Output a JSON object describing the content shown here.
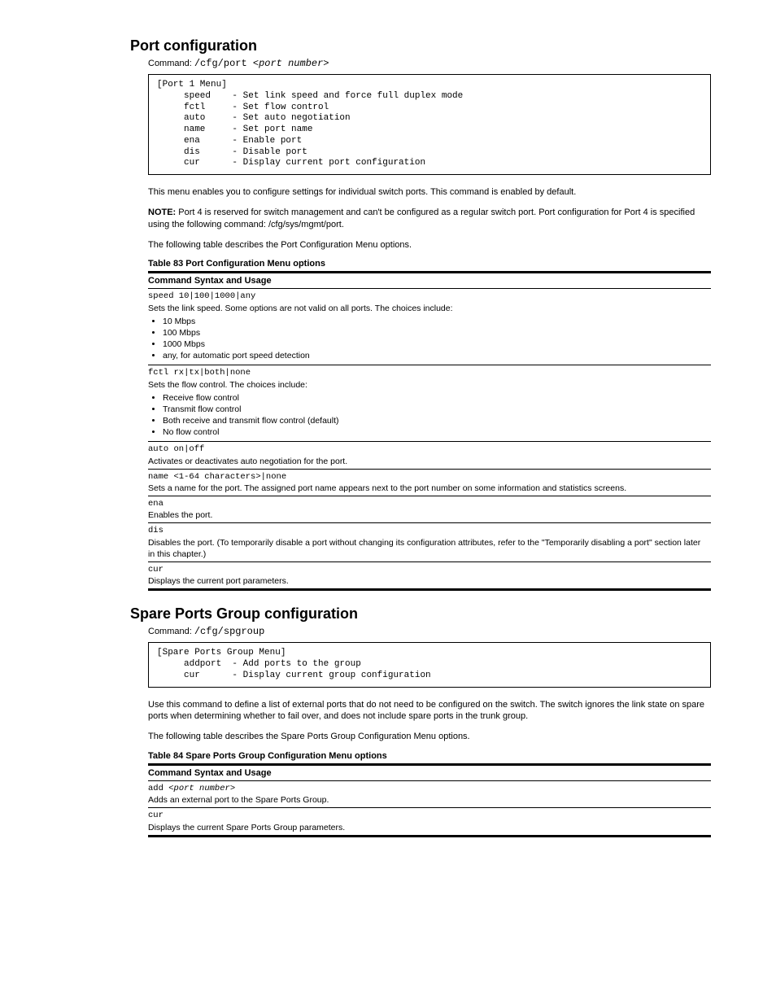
{
  "port_menu": {
    "heading": "Port configuration",
    "command_prefix": "/cfg/port <",
    "command_param": "port number",
    "command_suffix": ">",
    "codebox": "[Port 1 Menu]\n     speed    - Set link speed and force full duplex mode\n     fctl     - Set flow control\n     auto     - Set auto negotiation\n     name     - Set port name\n     ena      - Enable port\n     dis      - Disable port\n     cur      - Display current port configuration",
    "para": "This menu enables you to configure settings for individual switch ports. This command is enabled by default.",
    "note_label": "NOTE: ",
    "note_text": "Port 4 is reserved for switch management and can't be configured as a regular switch port. Port configuration for Port 4 is specified using the following command: /cfg/sys/mgmt/port.",
    "table_caption": "The following table describes the Port Configuration Menu options.",
    "table_title": "Table 83 Port Configuration Menu options",
    "col1": "Command Syntax and Usage",
    "rows": [
      {
        "syntax": "speed 10|100|1000|any",
        "desc_pre": "Sets the link speed. Some options are not valid on all ports. The choices include:",
        "bullets": [
          "10 Mbps",
          "100 Mbps",
          "1000 Mbps",
          "any, for automatic port speed detection"
        ]
      },
      {
        "syntax": "fctl rx|tx|both|none",
        "desc_pre": "Sets the flow control. The choices include:",
        "bullets": [
          "Receive flow control",
          "Transmit flow control",
          "Both receive and transmit flow control (default)",
          "No flow control"
        ]
      },
      {
        "syntax": "auto on|off",
        "desc": "Activates or deactivates auto negotiation for the port."
      },
      {
        "syntax": "name <1-64 characters>|none",
        "desc": "Sets a name for the port. The assigned port name appears next to the port number on some information and statistics screens."
      },
      {
        "syntax": "ena",
        "desc": "Enables the port."
      },
      {
        "syntax": "dis",
        "desc": "Disables the port. (To temporarily disable a port without changing its configuration attributes, refer to the \"Temporarily disabling a port\" section later in this chapter.)"
      },
      {
        "syntax": "cur",
        "desc": "Displays the current port parameters."
      }
    ]
  },
  "spgroup_menu": {
    "heading": "Spare Ports Group configuration",
    "command": "/cfg/spgroup",
    "codebox": "[Spare Ports Group Menu]\n     addport  - Add ports to the group\n     cur      - Display current group configuration",
    "para1": "Use this command to define a list of external ports that do not need to be configured on the switch. The switch ignores the link state on spare ports when determining whether to fail over, and does not include spare ports in the trunk group.",
    "para2": "The following table describes the Spare Ports Group Configuration Menu options.",
    "table_title": "Table 84 Spare Ports Group Configuration Menu options",
    "col1": "Command Syntax and Usage",
    "rows": [
      {
        "syntax_pre": "add ",
        "syntax_ital": "<port number>",
        "desc": "Adds an external port to the Spare Ports Group."
      },
      {
        "syntax": "cur",
        "desc": "Displays the current Spare Ports Group parameters."
      }
    ]
  }
}
